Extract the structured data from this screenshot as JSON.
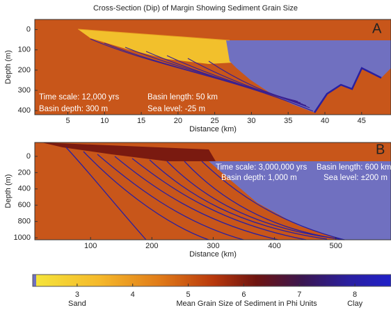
{
  "chart_data": [
    {
      "type": "cross-section",
      "title": "Cross-Section (Dip) of Margin Showing Sediment Grain Size",
      "panel": "A",
      "xlabel": "Distance (km)",
      "ylabel": "Depth (m)",
      "xlim": [
        0.5,
        49
      ],
      "ylim": [
        -50,
        420
      ],
      "xticks": [
        5,
        10,
        15,
        20,
        25,
        30,
        35,
        40,
        45
      ],
      "yticks": [
        0,
        100,
        200,
        300,
        400
      ],
      "annotations": [
        "Time scale: 12,000 yrs",
        "Basin depth: 300 m",
        "Basin length: 50 km",
        "Sea level: -25 m"
      ]
    },
    {
      "type": "cross-section",
      "panel": "B",
      "xlabel": "Distance (km)",
      "ylabel": "Depth (m)",
      "xlim": [
        9,
        590
      ],
      "ylim": [
        -170,
        1025
      ],
      "xticks": [
        100,
        200,
        300,
        400,
        500
      ],
      "yticks": [
        0,
        200,
        400,
        600,
        800,
        1000
      ],
      "annotations": [
        "Time scale: 3,000,000 yrs",
        "Basin length: 600 km",
        "Basin depth: 1,000 m",
        "Sea level: ±200 m"
      ]
    },
    {
      "type": "colorbar",
      "label": "Mean Grain Size of Sediment in Phi Units",
      "xlim": [
        2.2,
        8.65
      ],
      "xticks": [
        3,
        4,
        5,
        6,
        7,
        8
      ],
      "end_labels": [
        "Sand",
        "Clay"
      ]
    }
  ]
}
